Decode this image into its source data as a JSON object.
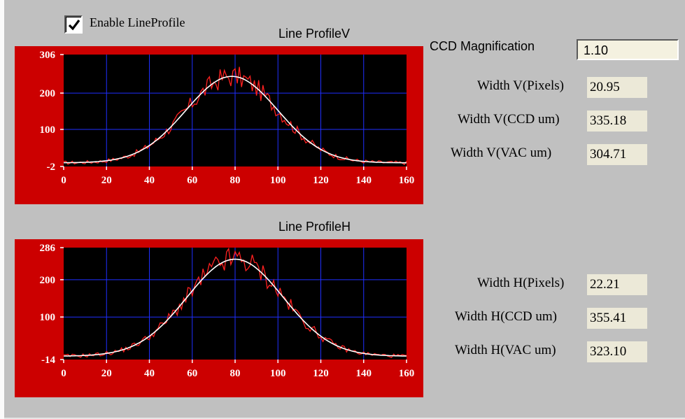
{
  "enable_lineprofile": {
    "label": "Enable LineProfile",
    "checked": true
  },
  "ccd_magnification": {
    "label": "CCD Magnification",
    "value": "1.10"
  },
  "vertical": {
    "title": "Line ProfileV",
    "rows": [
      {
        "label": "Width V(Pixels)",
        "value": "20.95"
      },
      {
        "label": "Width V(CCD um)",
        "value": "335.18"
      },
      {
        "label": "Width V(VAC um)",
        "value": "304.71"
      }
    ]
  },
  "horizontal": {
    "title": "Line ProfileH",
    "rows": [
      {
        "label": "Width H(Pixels)",
        "value": "22.21"
      },
      {
        "label": "Width H(CCD um)",
        "value": "355.41"
      },
      {
        "label": "Width H(VAC um)",
        "value": "323.10"
      }
    ]
  },
  "colors": {
    "panel": "#c0c0c0",
    "plot_frame": "#cc0000",
    "plot_bg": "#000000",
    "grid": "#1f2fff",
    "raw_trace": "#ff2020",
    "fit_trace": "#ffffff",
    "value_box": "#ece9d8"
  },
  "chart_data": [
    {
      "type": "line",
      "title": "Line ProfileV",
      "xlim": [
        0,
        160
      ],
      "ylim": [
        -2,
        306
      ],
      "xticks": [
        "0",
        "20",
        "40",
        "60",
        "80",
        "100",
        "120",
        "140",
        "160"
      ],
      "yticks": [
        "-2",
        "100",
        "200",
        "306"
      ],
      "fit": {
        "baseline": 8,
        "amplitude": 238,
        "center": 78.5,
        "sigma": 21.5
      },
      "grid": true
    },
    {
      "type": "line",
      "title": "Line ProfileH",
      "xlim": [
        0,
        160
      ],
      "ylim": [
        -14,
        286
      ],
      "xticks": [
        "0",
        "20",
        "40",
        "60",
        "80",
        "100",
        "120",
        "140",
        "160"
      ],
      "yticks": [
        "-14",
        "100",
        "200",
        "286"
      ],
      "fit": {
        "baseline": -5,
        "amplitude": 260,
        "center": 80,
        "sigma": 22.5
      },
      "grid": true
    }
  ]
}
